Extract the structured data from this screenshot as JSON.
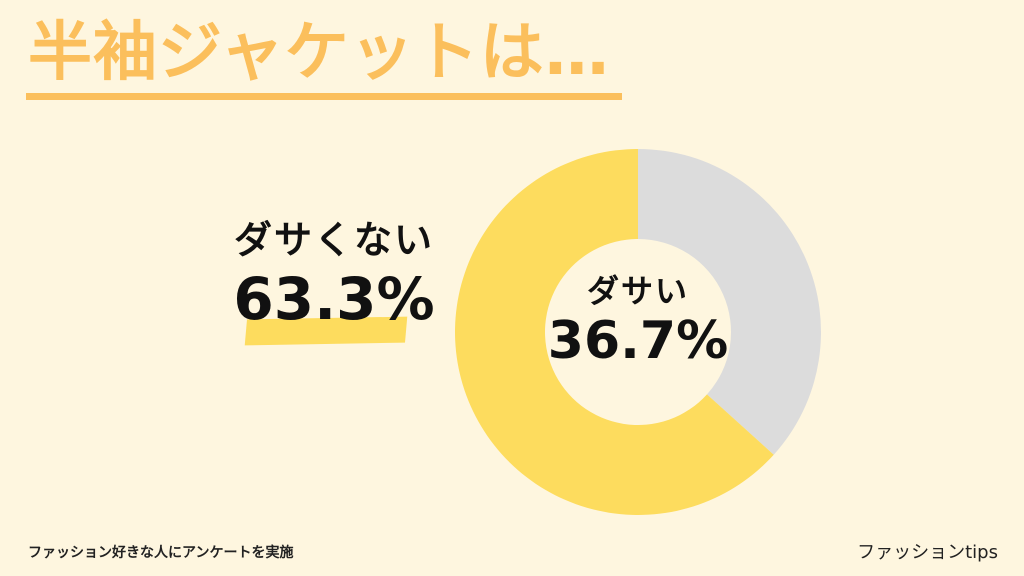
{
  "title": "半袖ジャケットは…",
  "footnote": "ファッション好きな人にアンケートを実施",
  "brand": "ファッションtips",
  "colors": {
    "background": "#FEF6DF",
    "title": "#FBBF5C",
    "not_lame": "#FDDC5E",
    "lame": "#DCDCDC"
  },
  "labels": {
    "not_lame_name": "ダサくない",
    "not_lame_value": "63.3%",
    "lame_name": "ダサい",
    "lame_value": "36.7%"
  },
  "chart_data": {
    "type": "pie",
    "title": "半袖ジャケットは…",
    "categories": [
      "ダサい",
      "ダサくない"
    ],
    "values": [
      36.7,
      63.3
    ],
    "colors": [
      "#DCDCDC",
      "#FDDC5E"
    ]
  }
}
